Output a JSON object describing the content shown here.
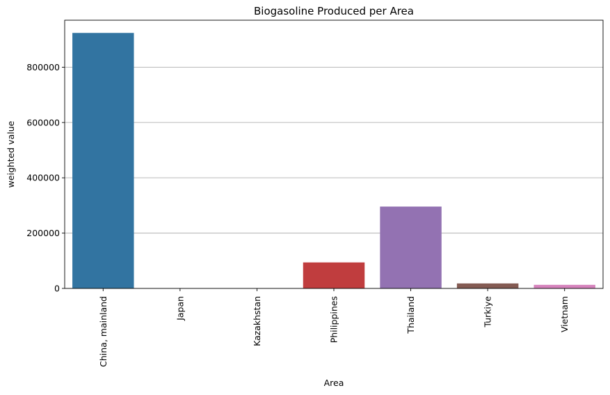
{
  "chart_data": {
    "type": "bar",
    "title": "Biogasoline Produced per Area",
    "xlabel": "Area",
    "ylabel": "weighted value",
    "categories": [
      "China, mainland",
      "Japan",
      "Kazakhstan",
      "Philippines",
      "Thailand",
      "Turkiye",
      "Vietnam"
    ],
    "values": [
      924000,
      0,
      0,
      94000,
      296000,
      18000,
      13000
    ],
    "colors": [
      "#3274a1",
      "#e1812c",
      "#3a923a",
      "#c03d3e",
      "#9372b2",
      "#845b53",
      "#d684bd"
    ],
    "ylim": [
      0,
      970000
    ],
    "yticks": [
      0,
      200000,
      400000,
      600000,
      800000
    ],
    "ytick_labels": [
      "0",
      "200000",
      "400000",
      "600000",
      "800000"
    ],
    "grid": "y",
    "xtick_rotation": "vertical"
  }
}
